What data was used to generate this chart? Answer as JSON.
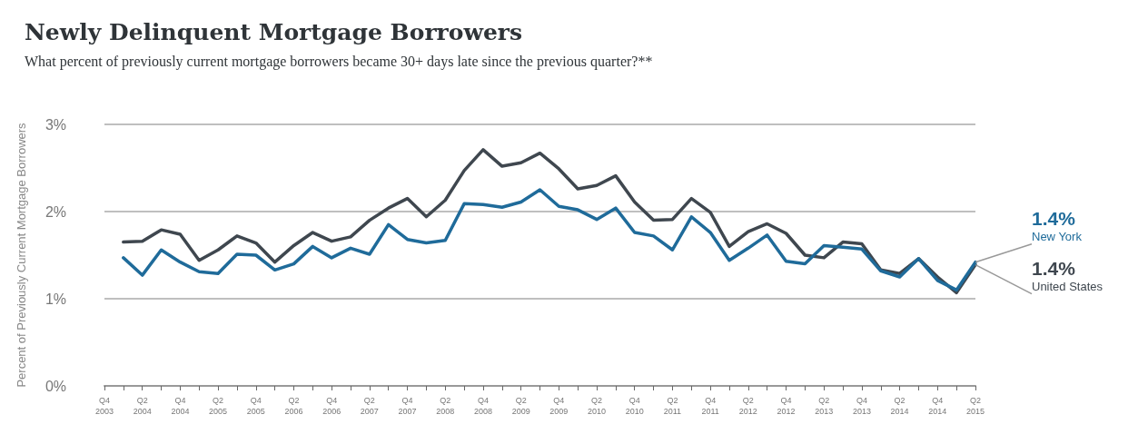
{
  "chart_data": {
    "type": "line",
    "title": "Newly Delinquent Mortgage Borrowers",
    "subtitle": "What percent of previously current mortgage borrowers became 30+ days late since the previous quarter?**",
    "ylabel": "Percent of Previously Current Mortgage Borrowers",
    "categories": [
      "Q4\n2003",
      null,
      "Q2\n2004",
      null,
      "Q4\n2004",
      null,
      "Q2\n2005",
      null,
      "Q4\n2005",
      null,
      "Q2\n2006",
      null,
      "Q4\n2006",
      null,
      "Q2\n2007",
      null,
      "Q4\n2007",
      null,
      "Q2\n2008",
      null,
      "Q4\n2008",
      null,
      "Q2\n2009",
      null,
      "Q4\n2009",
      null,
      "Q2\n2010",
      null,
      "Q4\n2010",
      null,
      "Q2\n2011",
      null,
      "Q4\n2011",
      null,
      "Q2\n2012",
      null,
      "Q4\n2012",
      null,
      "Q2\n2013",
      null,
      "Q4\n2013",
      null,
      "Q2\n2014",
      null,
      "Q4\n2014",
      null,
      "Q2\n2015"
    ],
    "series": [
      {
        "name": "United States",
        "color": "#3f474f",
        "values": [
          null,
          1.65,
          1.66,
          1.79,
          1.74,
          1.44,
          1.56,
          1.72,
          1.64,
          1.42,
          1.61,
          1.76,
          1.66,
          1.71,
          1.9,
          2.04,
          2.15,
          1.94,
          2.13,
          2.47,
          2.71,
          2.52,
          2.56,
          2.67,
          2.49,
          2.26,
          2.3,
          2.41,
          2.11,
          1.9,
          1.91,
          2.15,
          1.99,
          1.6,
          1.77,
          1.86,
          1.75,
          1.5,
          1.47,
          1.65,
          1.63,
          1.33,
          1.29,
          1.46,
          1.25,
          1.07,
          1.39
        ],
        "value_labels": [
          null,
          null,
          null,
          null,
          null,
          null,
          null,
          null,
          null,
          null,
          null,
          null,
          null,
          null,
          null,
          null,
          null,
          null,
          null,
          null,
          null,
          null,
          null,
          null,
          null,
          null,
          null,
          null,
          null,
          null,
          null,
          null,
          null,
          null,
          null,
          null,
          null,
          null,
          null,
          null,
          null,
          null,
          null,
          null,
          null,
          null,
          "1.4%"
        ]
      },
      {
        "name": "New York",
        "color": "#1f6b9a",
        "values": [
          null,
          1.47,
          1.27,
          1.56,
          1.42,
          1.31,
          1.29,
          1.51,
          1.5,
          1.33,
          1.4,
          1.6,
          1.47,
          1.58,
          1.51,
          1.85,
          1.68,
          1.64,
          1.67,
          2.09,
          2.08,
          2.05,
          2.11,
          2.25,
          2.06,
          2.02,
          1.91,
          2.04,
          1.76,
          1.72,
          1.56,
          1.94,
          1.76,
          1.44,
          1.58,
          1.73,
          1.43,
          1.4,
          1.61,
          1.59,
          1.57,
          1.32,
          1.25,
          1.46,
          1.21,
          1.1,
          1.42
        ],
        "value_labels": [
          null,
          null,
          null,
          null,
          null,
          null,
          null,
          null,
          null,
          null,
          null,
          null,
          null,
          null,
          null,
          null,
          null,
          null,
          null,
          null,
          null,
          null,
          null,
          null,
          null,
          null,
          null,
          null,
          null,
          null,
          null,
          null,
          null,
          null,
          null,
          null,
          null,
          null,
          null,
          null,
          null,
          null,
          null,
          null,
          null,
          null,
          "1.4%"
        ]
      }
    ],
    "ylim": [
      0,
      3
    ],
    "yticks": [
      {
        "value": 0,
        "label": "0%"
      },
      {
        "value": 1,
        "label": "1%"
      },
      {
        "value": 2,
        "label": "2%"
      },
      {
        "value": 3,
        "label": "3%"
      }
    ],
    "grid": "y",
    "legend": false,
    "marker": "none",
    "line_style": "solid"
  }
}
